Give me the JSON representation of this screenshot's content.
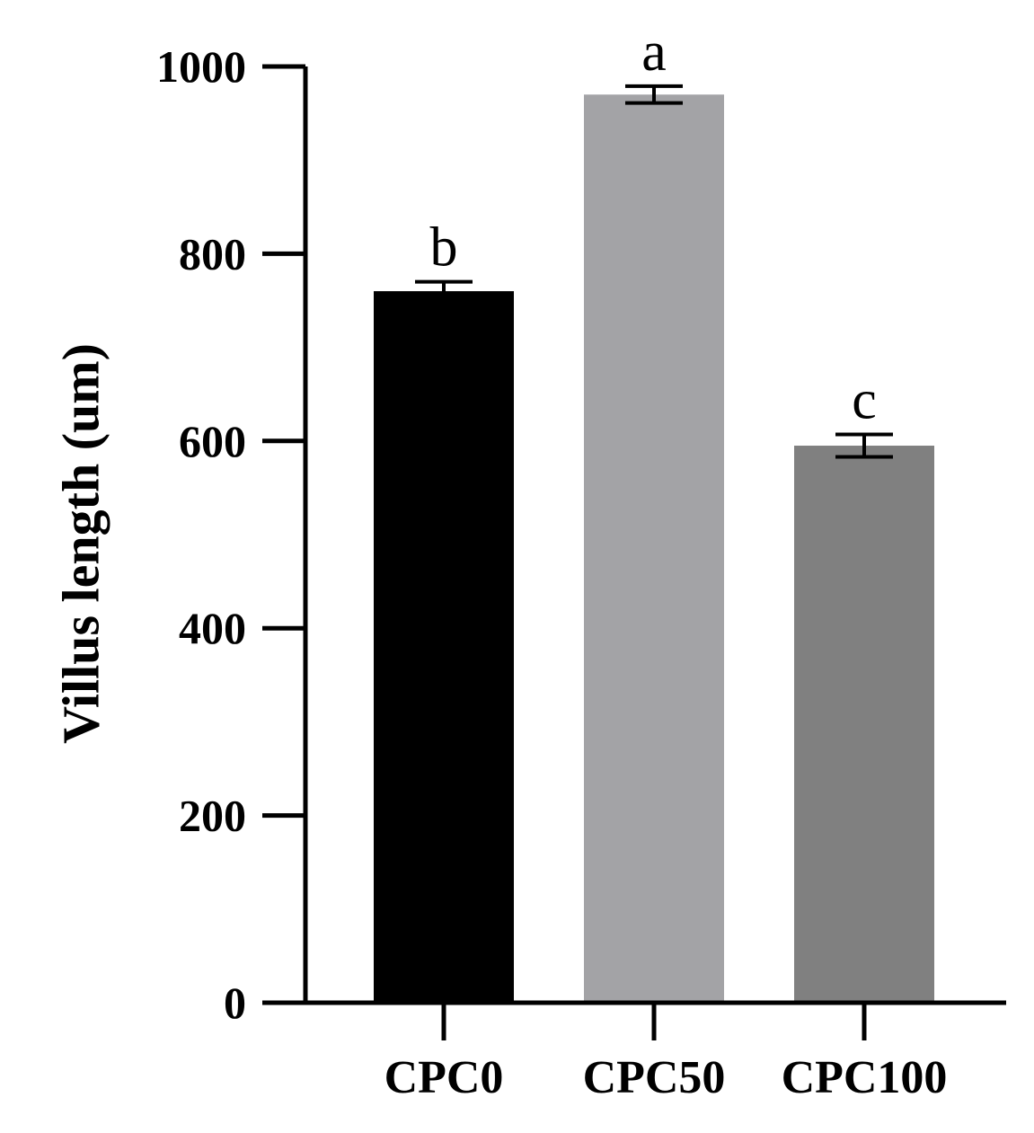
{
  "chart_data": {
    "type": "bar",
    "title": "",
    "xlabel": "",
    "ylabel": "Villus length (um)",
    "ylim": [
      0,
      1000
    ],
    "yticks": [
      0,
      200,
      400,
      600,
      800,
      1000
    ],
    "categories": [
      "CPC0",
      "CPC50",
      "CPC100"
    ],
    "values": [
      760,
      970,
      595
    ],
    "errors": [
      10,
      9,
      12
    ],
    "significance_labels": [
      "b",
      "a",
      "c"
    ],
    "bar_colors": [
      "#000000",
      "#a3a3a6",
      "#808080"
    ],
    "grid": false,
    "legend": "none"
  }
}
